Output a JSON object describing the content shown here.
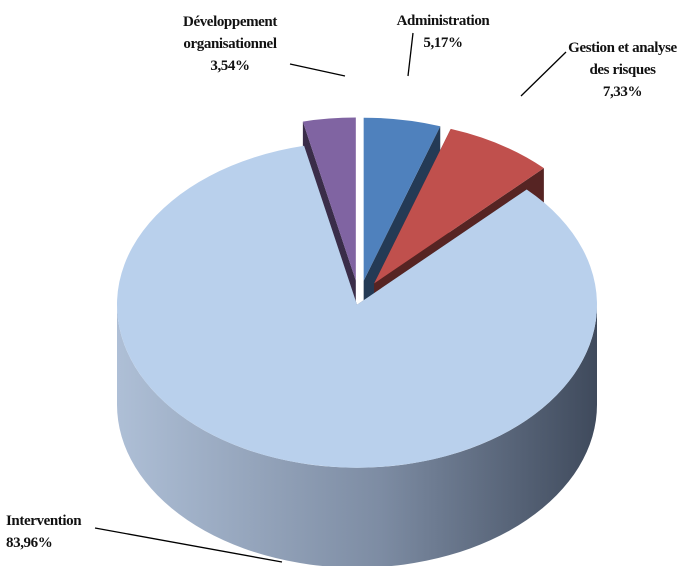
{
  "chart_data": {
    "type": "pie3d",
    "categories": [
      "Administration",
      "Gestion et analyse des risques",
      "Intervention",
      "Développement organisationnel"
    ],
    "values": [
      5.17,
      7.33,
      83.96,
      3.54
    ],
    "value_labels": [
      "5,17%",
      "7,33%",
      "83,96%",
      "3,54%"
    ],
    "colors": [
      "#4f81bd",
      "#c0504d",
      "#b9d0ec",
      "#8064a2"
    ]
  }
}
